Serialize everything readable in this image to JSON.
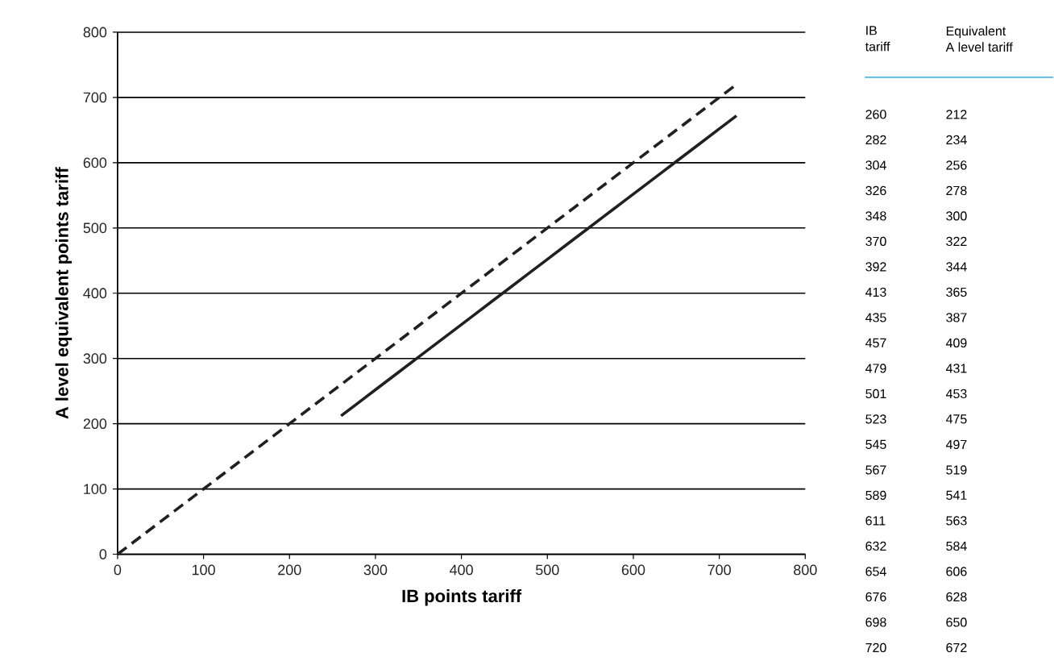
{
  "chart_data": [
    {
      "type": "line",
      "xlabel": "IB points tariff",
      "ylabel": "A level equivalent points tariff",
      "xlim": [
        0,
        800
      ],
      "xticks": [
        0,
        100,
        200,
        300,
        400,
        500,
        600,
        700,
        800
      ],
      "ylim": [
        0,
        800
      ],
      "yticks": [
        0,
        100,
        200,
        300,
        400,
        500,
        600,
        700,
        800
      ],
      "grid": "y",
      "series": [
        {
          "color": "#231f20",
          "line_style": "dashed",
          "x": [
            0,
            720
          ],
          "values": [
            0,
            720
          ]
        },
        {
          "color": "#231f20",
          "line_style": "solid",
          "x": [
            260,
            282,
            304,
            326,
            348,
            370,
            392,
            413,
            435,
            457,
            479,
            501,
            523,
            545,
            567,
            589,
            611,
            632,
            654,
            676,
            698,
            720
          ],
          "values": [
            212,
            234,
            256,
            278,
            300,
            322,
            344,
            365,
            387,
            409,
            431,
            453,
            475,
            497,
            519,
            541,
            563,
            584,
            606,
            628,
            650,
            672
          ]
        }
      ]
    },
    {
      "type": "other",
      "annotations": [
        "IB tariff",
        "Equivalent A level tariff",
        "260",
        "212",
        "282",
        "234",
        "304",
        "256",
        "326",
        "278",
        "348",
        "300",
        "370",
        "322",
        "392",
        "344",
        "413",
        "365",
        "435",
        "387",
        "457",
        "409",
        "479",
        "431",
        "501",
        "453",
        "523",
        "475",
        "545",
        "497",
        "567",
        "519",
        "589",
        "541",
        "611",
        "563",
        "632",
        "584",
        "654",
        "606",
        "676",
        "628",
        "698",
        "650",
        "720",
        "672"
      ]
    }
  ]
}
